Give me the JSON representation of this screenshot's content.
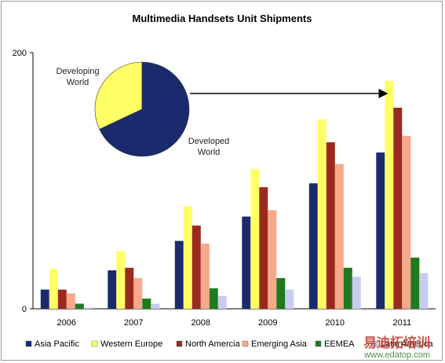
{
  "chart_data": {
    "type": "bar",
    "title": "Multimedia Handsets Unit Shipments",
    "categories": [
      "2006",
      "2007",
      "2008",
      "2009",
      "2010",
      "2011"
    ],
    "ylim": [
      0,
      200
    ],
    "yticks": [
      0,
      200
    ],
    "grid": false,
    "legend_position": "bottom",
    "series": [
      {
        "name": "Asia Pacific",
        "color": "#1a2a6c",
        "values": [
          15,
          30,
          53,
          72,
          98,
          122
        ]
      },
      {
        "name": "Western Europe",
        "color": "#ffff66",
        "values": [
          31,
          45,
          80,
          109,
          148,
          178
        ]
      },
      {
        "name": "North Amercia",
        "color": "#9b2a1e",
        "values": [
          15,
          32,
          65,
          95,
          130,
          157
        ]
      },
      {
        "name": "Emerging Asia",
        "color": "#f7a98a",
        "values": [
          12,
          24,
          51,
          77,
          113,
          135
        ]
      },
      {
        "name": "EEMEA",
        "color": "#1f7a1f",
        "values": [
          4,
          8,
          16,
          24,
          32,
          40
        ]
      },
      {
        "name": "Latin America",
        "color": "#c8cbf2",
        "values": [
          1,
          4,
          10,
          15,
          25,
          28
        ]
      }
    ],
    "inset_pie": {
      "slices": [
        {
          "label_line1": "Developing",
          "label_line2": "World",
          "value": 32,
          "color": "#ffff66"
        },
        {
          "label_line1": "Developed",
          "label_line2": "World",
          "value": 68,
          "color": "#1a2a6c"
        }
      ]
    }
  },
  "watermark": {
    "chinese": "易迪拓培训",
    "url": "www.edatop.com"
  }
}
